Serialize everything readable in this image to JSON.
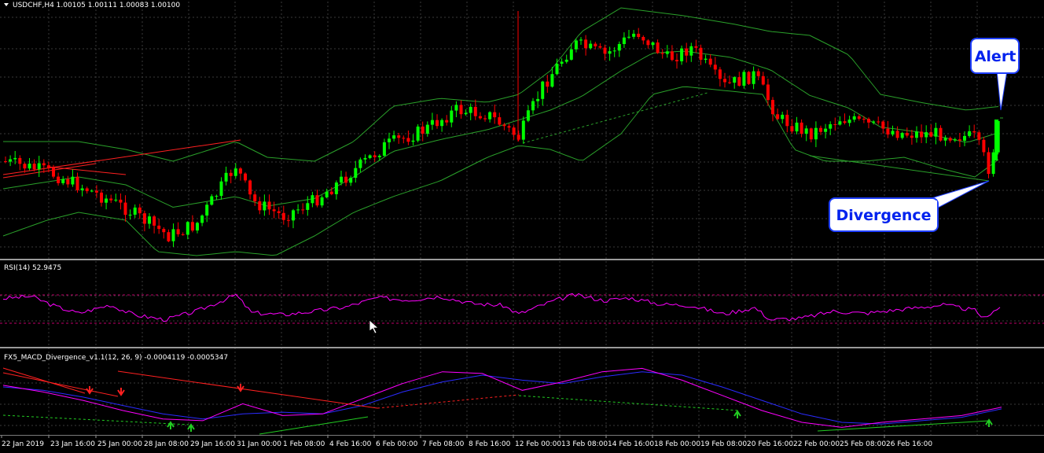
{
  "window": {
    "price_label": "USDCHF,H4  1.00105 1.00111 1.00083 1.00100",
    "rsi_label": "RSI(14) 52.9475",
    "macd_label": "FX5_MACD_Divergence_v1.1(12, 26, 9) -0.0004119 -0.0005347"
  },
  "callouts": {
    "alert": "Alert",
    "divergence": "Divergence"
  },
  "colors": {
    "background": "#000000",
    "grid": "#3a3a3a",
    "bull_candle": "#00ff00",
    "bear_candle": "#ff0000",
    "bollinger": "#2aa02a",
    "rsi_line": "#ff00ff",
    "rsi_levels": "#c0006a",
    "macd_line": "#ff00ff",
    "signal_line": "#2b2bff",
    "callout_bg": "#ffffff",
    "callout_border": "#1f3fff",
    "callout_text": "#0022ee",
    "bear_arrow": "#ff2020",
    "bull_arrow": "#22cc22"
  },
  "chart_data": {
    "type": "line",
    "title": "USDCHF,H4",
    "symbol": "USDCHF",
    "timeframe": "H4",
    "x_tick_labels": [
      "22 Jan 2019",
      "23 Jan 16:00",
      "25 Jan 00:00",
      "28 Jan 08:00",
      "29 Jan 16:00",
      "31 Jan 00:00",
      "1 Feb 08:00",
      "4 Feb 16:00",
      "6 Feb 00:00",
      "7 Feb 08:00",
      "8 Feb 16:00",
      "12 Feb 00:00",
      "13 Feb 08:00",
      "14 Feb 16:00",
      "18 Feb 00:00",
      "19 Feb 08:00",
      "20 Feb 16:00",
      "22 Feb 00:00",
      "25 Feb 08:00",
      "26 Feb 16:00"
    ],
    "price": {
      "last_quote": {
        "open": 1.00105,
        "high": 1.00111,
        "low": 1.00083,
        "close": 1.001
      },
      "series": [
        {
          "name": "Close (approx.)",
          "values": [
            0.9975,
            0.9966,
            0.9995,
            0.9958,
            0.9962,
            0.9944,
            0.9941,
            0.9978,
            1.0005,
            0.9954,
            0.9958,
            0.9988,
            1.0023,
            1.0032,
            1.0031,
            1.0025,
            1.0017,
            1.0056,
            1.0086,
            1.0084,
            1.0068,
            1.0074,
            1.0052,
            1.005,
            1.0025,
            1.0009,
            1.0015,
            1.0,
            0.9984,
            1.0001
          ]
        }
      ],
      "indicators": [
        "Bollinger Bands"
      ]
    },
    "rsi": {
      "period": 14,
      "value": 52.9475,
      "levels": [
        70,
        30
      ]
    },
    "macd": {
      "fast": 12,
      "slow": 26,
      "signal": 9,
      "main_value": -0.0004119,
      "signal_value": -0.0005347,
      "series": [
        {
          "name": "MACD (approx.)",
          "values": [
            0.0009,
            0.0005,
            0.0,
            -0.0006,
            -0.0011,
            -0.0012,
            -0.0002,
            -0.0009,
            -0.0008,
            0.0001,
            0.001,
            0.0017,
            0.0016,
            0.0006,
            0.0011,
            0.0017,
            0.0019,
            0.0012,
            0.0003,
            -0.0006,
            -0.0013,
            -0.0016,
            -0.0013,
            -0.0011,
            -0.0009,
            -0.0004
          ]
        },
        {
          "name": "Signal (approx.)",
          "values": [
            0.0008,
            0.0006,
            0.0002,
            -0.0003,
            -0.0008,
            -0.0011,
            -0.0008,
            -0.0007,
            -0.0008,
            -0.0003,
            0.0005,
            0.0011,
            0.0015,
            0.0012,
            0.001,
            0.0014,
            0.0017,
            0.0015,
            0.0008,
            0.0,
            -0.0008,
            -0.0013,
            -0.0014,
            -0.0012,
            -0.001,
            -0.0005
          ]
        }
      ],
      "signals": {
        "bearish_divergence_arrows": 3,
        "bullish_divergence_arrows": 4
      }
    }
  }
}
